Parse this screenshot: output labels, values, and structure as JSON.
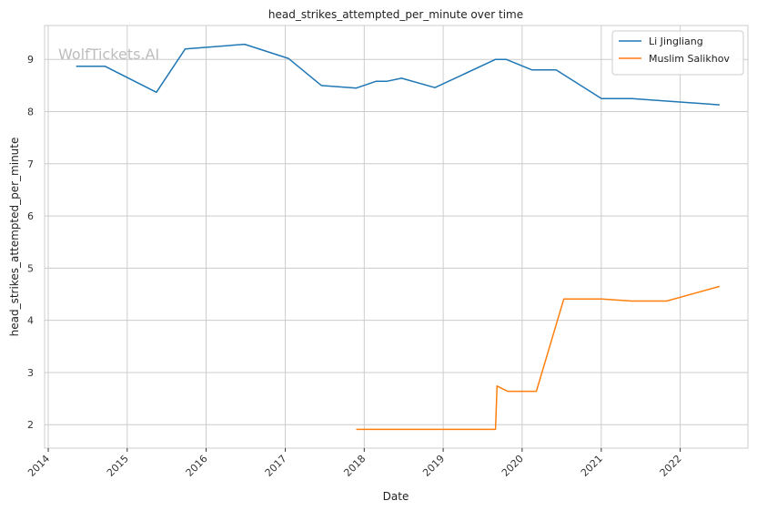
{
  "watermark": "WolfTickets.AI",
  "chart_data": {
    "type": "line",
    "title": "head_strikes_attempted_per_minute over time",
    "xlabel": "Date",
    "ylabel": "head_strikes_attempted_per_minute",
    "x_type": "date",
    "xlim": [
      "2013-12-15",
      "2022-11-10"
    ],
    "ylim": [
      1.55,
      9.65
    ],
    "xticks": [
      {
        "date": "2014-01-01",
        "label": "2014"
      },
      {
        "date": "2015-01-01",
        "label": "2015"
      },
      {
        "date": "2016-01-01",
        "label": "2016"
      },
      {
        "date": "2017-01-01",
        "label": "2017"
      },
      {
        "date": "2018-01-01",
        "label": "2018"
      },
      {
        "date": "2019-01-01",
        "label": "2019"
      },
      {
        "date": "2020-01-01",
        "label": "2020"
      },
      {
        "date": "2021-01-01",
        "label": "2021"
      },
      {
        "date": "2022-01-01",
        "label": "2022"
      }
    ],
    "yticks": [
      2,
      3,
      4,
      5,
      6,
      7,
      8,
      9
    ],
    "grid": true,
    "legend_position": "top-right",
    "series": [
      {
        "name": "Li Jingliang",
        "color": "#1f77b4",
        "points": [
          [
            "2014-05-10",
            8.87
          ],
          [
            "2014-09-20",
            8.87
          ],
          [
            "2015-05-16",
            8.37
          ],
          [
            "2015-09-26",
            9.2
          ],
          [
            "2016-06-27",
            9.29
          ],
          [
            "2017-01-15",
            9.02
          ],
          [
            "2017-06-17",
            8.5
          ],
          [
            "2017-11-25",
            8.45
          ],
          [
            "2018-02-24",
            8.58
          ],
          [
            "2018-04-14",
            8.58
          ],
          [
            "2018-06-23",
            8.64
          ],
          [
            "2018-11-24",
            8.46
          ],
          [
            "2019-08-31",
            9.0
          ],
          [
            "2019-10-19",
            9.0
          ],
          [
            "2020-02-15",
            8.8
          ],
          [
            "2020-06-06",
            8.8
          ],
          [
            "2021-01-02",
            8.25
          ],
          [
            "2021-05-22",
            8.25
          ],
          [
            "2022-07-02",
            8.13
          ]
        ]
      },
      {
        "name": "Muslim Salikhov",
        "color": "#ff7f0e",
        "points": [
          [
            "2017-11-25",
            1.91
          ],
          [
            "2019-08-31",
            1.91
          ],
          [
            "2019-09-07",
            2.74
          ],
          [
            "2019-10-26",
            2.64
          ],
          [
            "2020-03-07",
            2.64
          ],
          [
            "2020-07-12",
            4.41
          ],
          [
            "2021-01-02",
            4.41
          ],
          [
            "2021-05-22",
            4.37
          ],
          [
            "2021-10-30",
            4.37
          ],
          [
            "2022-07-02",
            4.65
          ]
        ]
      }
    ]
  }
}
